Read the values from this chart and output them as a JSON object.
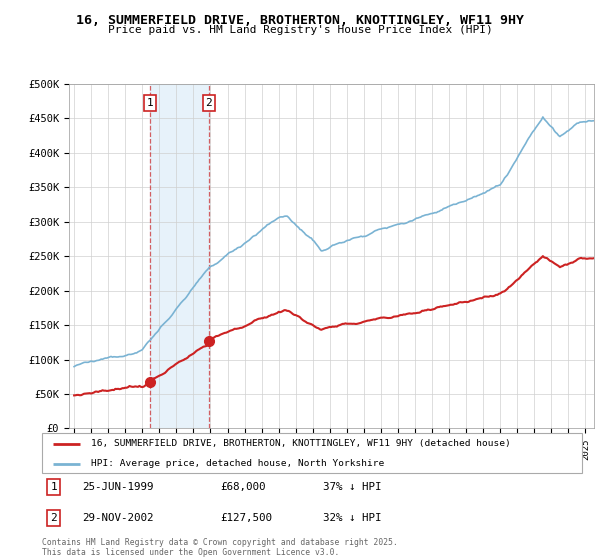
{
  "title1": "16, SUMMERFIELD DRIVE, BROTHERTON, KNOTTINGLEY, WF11 9HY",
  "title2": "Price paid vs. HM Land Registry's House Price Index (HPI)",
  "ylabel_ticks": [
    "£0",
    "£50K",
    "£100K",
    "£150K",
    "£200K",
    "£250K",
    "£300K",
    "£350K",
    "£400K",
    "£450K",
    "£500K"
  ],
  "ytick_vals": [
    0,
    50000,
    100000,
    150000,
    200000,
    250000,
    300000,
    350000,
    400000,
    450000,
    500000
  ],
  "ylim": [
    0,
    500000
  ],
  "xlim_start": 1994.7,
  "xlim_end": 2025.5,
  "hpi_color": "#7ab3d3",
  "price_color": "#cc2222",
  "marker1_date": 1999.47,
  "marker2_date": 2002.91,
  "marker1_price": 68000,
  "marker2_price": 127500,
  "legend_line1": "16, SUMMERFIELD DRIVE, BROTHERTON, KNOTTINGLEY, WF11 9HY (detached house)",
  "legend_line2": "HPI: Average price, detached house, North Yorkshire",
  "annotation1_date": "25-JUN-1999",
  "annotation1_price": "£68,000",
  "annotation1_hpi": "37% ↓ HPI",
  "annotation2_date": "29-NOV-2002",
  "annotation2_price": "£127,500",
  "annotation2_hpi": "32% ↓ HPI",
  "footer": "Contains HM Land Registry data © Crown copyright and database right 2025.\nThis data is licensed under the Open Government Licence v3.0.",
  "bg_shade_color": "#d8eaf7",
  "bg_shade_alpha": 0.6
}
